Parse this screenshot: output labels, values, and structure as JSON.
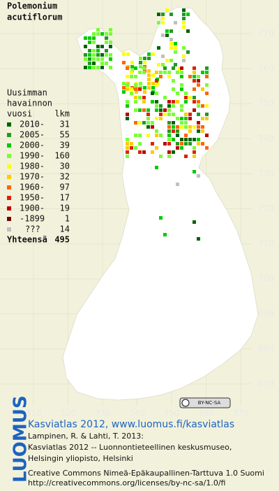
{
  "title": [
    "Polemonium",
    "acutiflorum"
  ],
  "legend": {
    "heading": [
      "Uusimman",
      "havainnon"
    ],
    "year_header": "vuosi",
    "count_header": "lkm",
    "entries": [
      {
        "label": "2010-",
        "count": 31,
        "color": "#006400"
      },
      {
        "label": "2005-",
        "count": 55,
        "color": "#229922"
      },
      {
        "label": "2000-",
        "count": 39,
        "color": "#00cc00"
      },
      {
        "label": "1990-",
        "count": 160,
        "color": "#77ff33"
      },
      {
        "label": "1980-",
        "count": 30,
        "color": "#ffff00"
      },
      {
        "label": "1970-",
        "count": 32,
        "color": "#ffcc00"
      },
      {
        "label": "1960-",
        "count": 97,
        "color": "#ff6600"
      },
      {
        "label": "1950-",
        "count": 17,
        "color": "#dd2200"
      },
      {
        "label": "1900-",
        "count": 19,
        "color": "#bb0000"
      },
      {
        "label": "-1899",
        "count": 1,
        "color": "#7a0000"
      },
      {
        "label": "???",
        "count": 14,
        "color": "#c0c0c0"
      }
    ],
    "total_label": "Yhteensä",
    "total": 495
  },
  "grid": {
    "x_labels": [
      310,
      320,
      330,
      340,
      350,
      360,
      370
    ],
    "y_labels": [
      770,
      760,
      750,
      740,
      730,
      720,
      710,
      700,
      690,
      680,
      670
    ]
  },
  "badge": "BY-NC-SA",
  "footer": {
    "logo": "LUOMUS",
    "site": "Kasviatlas 2012, www.luomus.fi/kasviatlas",
    "citation": [
      "Lampinen, R. & Lahti, T. 2013:",
      "Kasviatlas 2012 -- Luonnontieteellinen keskusmuseo,",
      "Helsingin yliopisto, Helsinki"
    ],
    "license": [
      "Creative Commons Nimeä-Epäkaupallinen-Tarttuva 1.0 Suomi",
      "http://creativecommons.org/licenses/by-nc-sa/1.0/fi"
    ]
  }
}
